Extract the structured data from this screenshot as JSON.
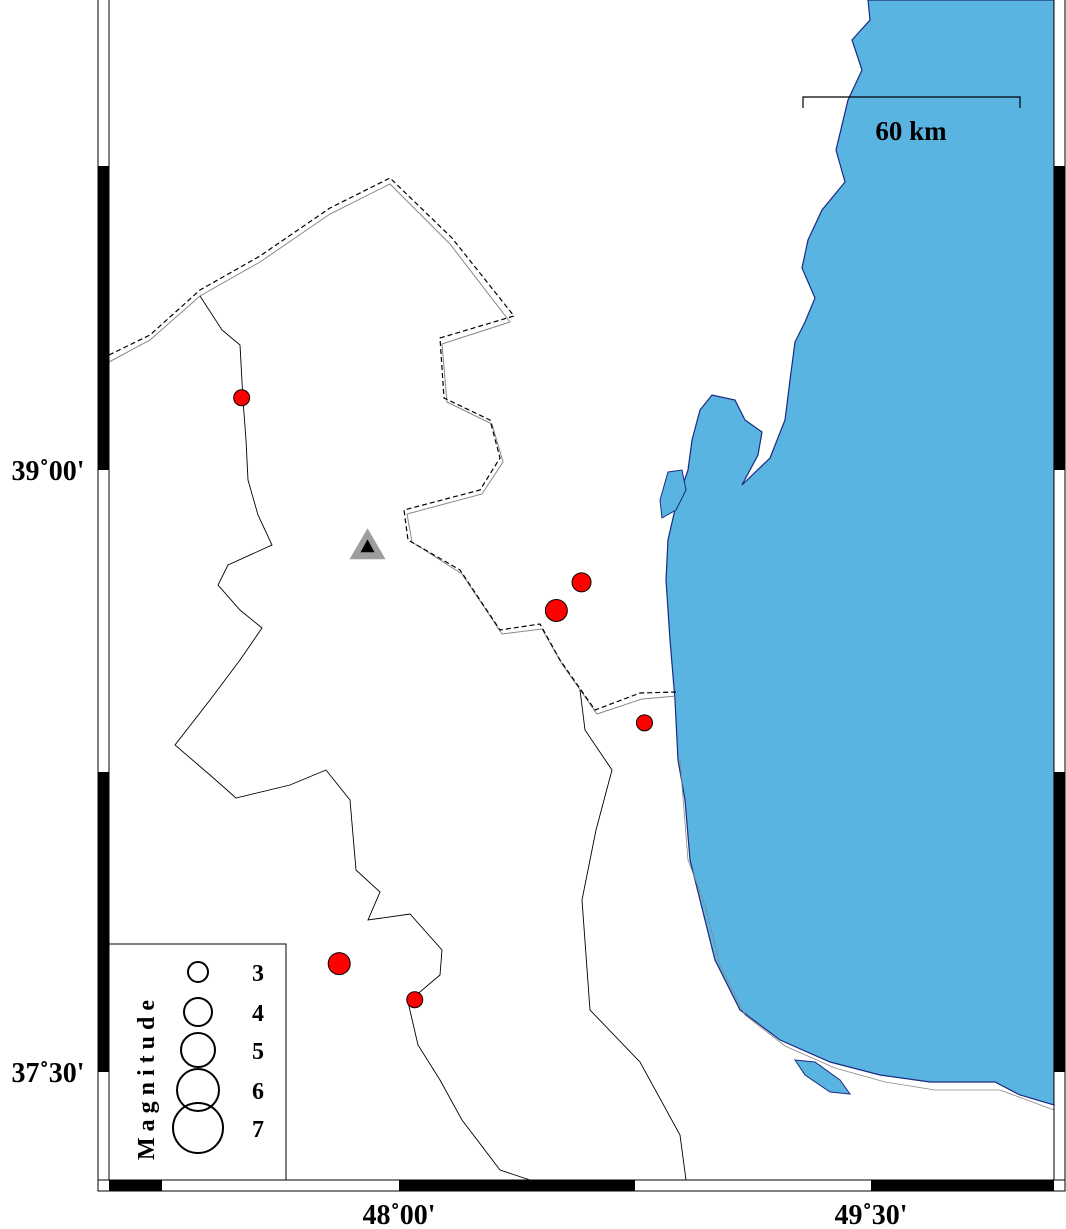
{
  "map": {
    "colors": {
      "sea": "#5ab4e2",
      "coast": "#1a2a80",
      "event": "#ff0000",
      "station": "#9e9e9e",
      "land": "#ffffff"
    },
    "lon_ticks": [
      {
        "value": 48.0,
        "label": "48˚00'"
      },
      {
        "value": 49.5,
        "label": "49˚30'"
      }
    ],
    "lat_ticks": [
      {
        "value": 39.0,
        "label": "39˚00'"
      },
      {
        "value": 37.5,
        "label": "37˚30'"
      }
    ],
    "scale_bar": {
      "label": "60 km",
      "length_km": 60
    },
    "events": [
      {
        "lon": 47.5,
        "lat": 39.18,
        "magnitude": 3
      },
      {
        "lon": 48.58,
        "lat": 38.72,
        "magnitude": 3.5
      },
      {
        "lon": 48.5,
        "lat": 38.65,
        "magnitude": 4
      },
      {
        "lon": 48.78,
        "lat": 38.37,
        "magnitude": 3
      },
      {
        "lon": 47.81,
        "lat": 37.77,
        "magnitude": 4
      },
      {
        "lon": 48.05,
        "lat": 37.68,
        "magnitude": 3
      }
    ],
    "station": {
      "lon": 47.9,
      "lat": 38.81,
      "icon": "triangle-icon"
    },
    "legend": {
      "title": "Magnitude",
      "entries": [
        {
          "label": "3",
          "value": 3
        },
        {
          "label": "4",
          "value": 4
        },
        {
          "label": "5",
          "value": 5
        },
        {
          "label": "6",
          "value": 6
        },
        {
          "label": "7",
          "value": 7
        }
      ]
    }
  }
}
